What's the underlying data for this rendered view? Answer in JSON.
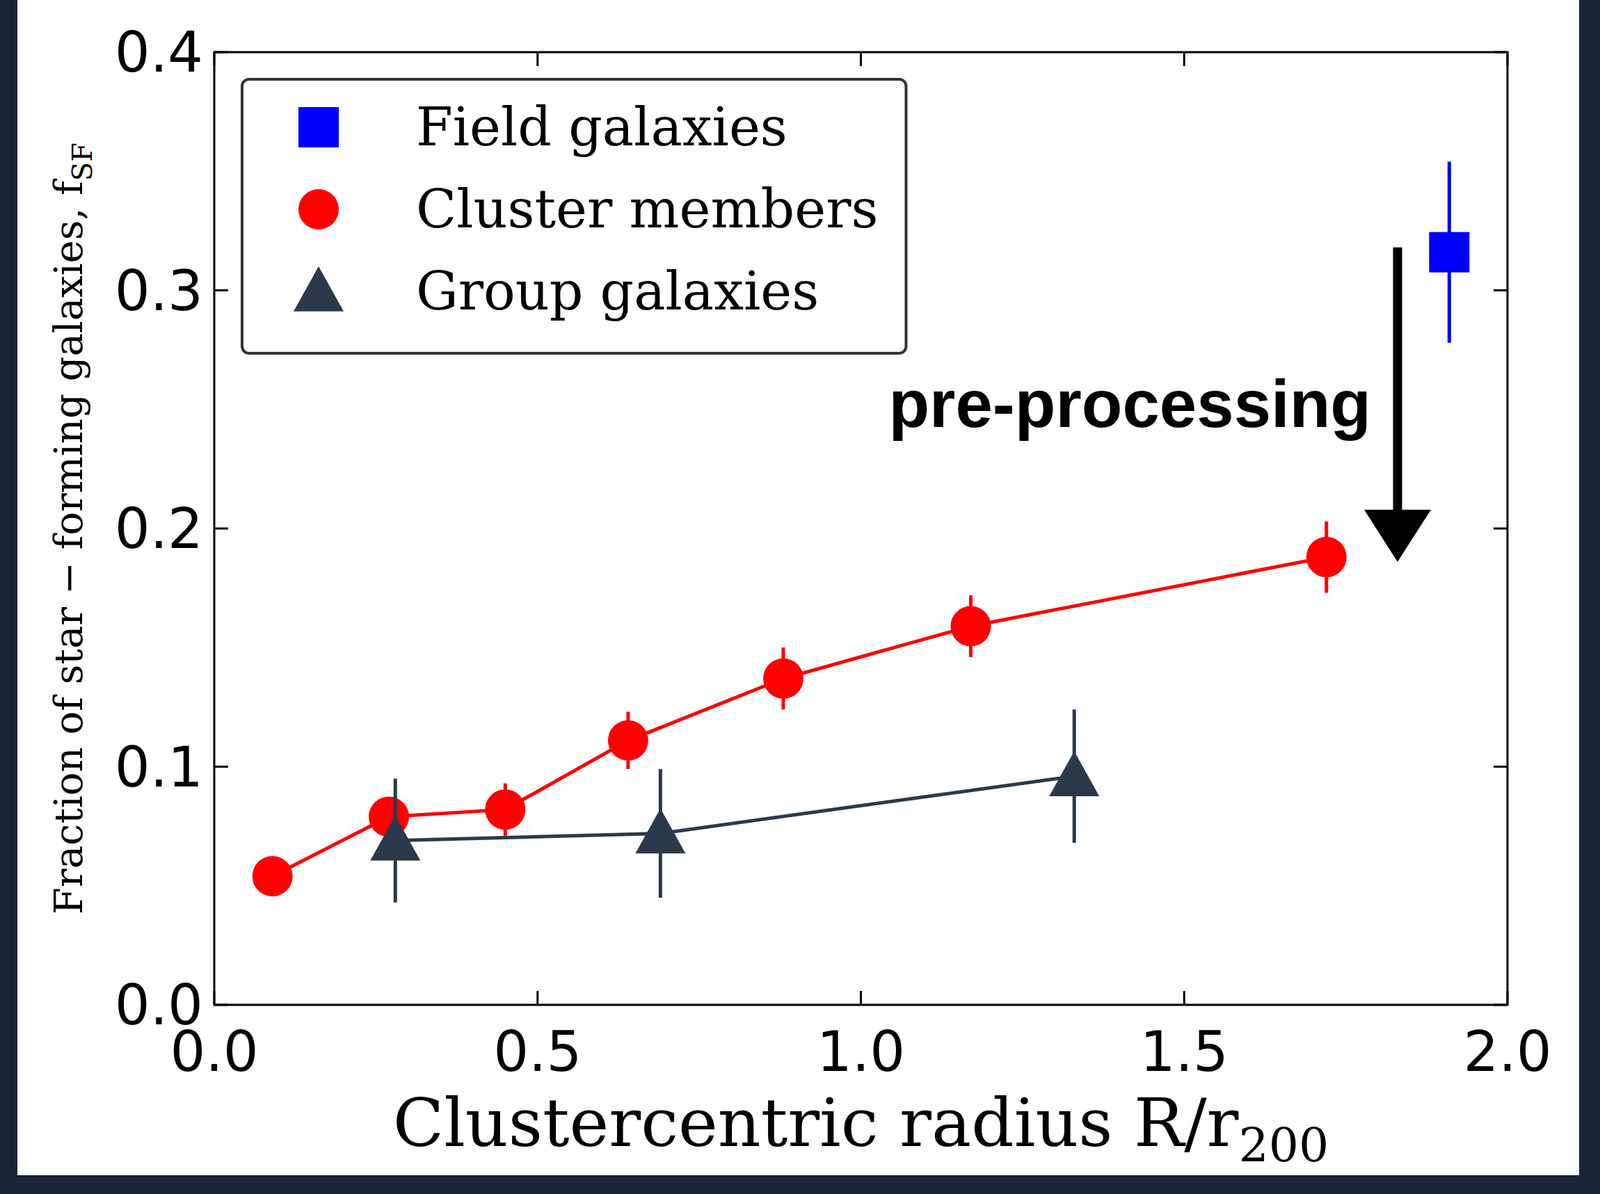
{
  "chart_data": {
    "type": "line",
    "xlabel": {
      "text": "Clustercentric radius R/r",
      "subscript": "200"
    },
    "ylabel": {
      "text": "Fraction of star − forming galaxies,  f",
      "subscript": "SF"
    },
    "xlim": [
      0,
      2
    ],
    "ylim": [
      0,
      0.4
    ],
    "xticks": [
      {
        "value": 0,
        "label": "0.0"
      },
      {
        "value": 0.5,
        "label": "0.5"
      },
      {
        "value": 1,
        "label": "1.0"
      },
      {
        "value": 1.5,
        "label": "1.5"
      },
      {
        "value": 2,
        "label": "2.0"
      }
    ],
    "yticks": [
      {
        "value": 0,
        "label": "0.0"
      },
      {
        "value": 0.1,
        "label": "0.1"
      },
      {
        "value": 0.2,
        "label": "0.2"
      },
      {
        "value": 0.3,
        "label": "0.3"
      },
      {
        "value": 0.4,
        "label": "0.4"
      }
    ],
    "legend": "upper left",
    "grid": false,
    "series": [
      {
        "name": "Field galaxies",
        "color": "#0000ff",
        "marker": "square",
        "line_style": "none",
        "x": [
          1.91
        ],
        "values": [
          0.316
        ],
        "errors": [
          0.038
        ]
      },
      {
        "name": "Cluster members",
        "color": "#ff0000",
        "marker": "circle",
        "line_style": "solid",
        "x": [
          0.09,
          0.27,
          0.45,
          0.64,
          0.88,
          1.17,
          1.72
        ],
        "values": [
          0.054,
          0.079,
          0.082,
          0.111,
          0.137,
          0.159,
          0.188
        ],
        "errors": [
          0.004,
          0.006,
          0.011,
          0.012,
          0.013,
          0.013,
          0.015
        ]
      },
      {
        "name": "Group galaxies",
        "color": "#2b3a4a",
        "marker": "triangle",
        "line_style": "solid",
        "x": [
          0.28,
          0.69,
          1.33
        ],
        "values": [
          0.069,
          0.072,
          0.096
        ],
        "errors": [
          0.026,
          0.027,
          0.028
        ]
      }
    ],
    "annotations": [
      {
        "text": "pre-processing",
        "x": 1.83,
        "y_from": 0.318,
        "y_to": 0.186
      }
    ]
  }
}
